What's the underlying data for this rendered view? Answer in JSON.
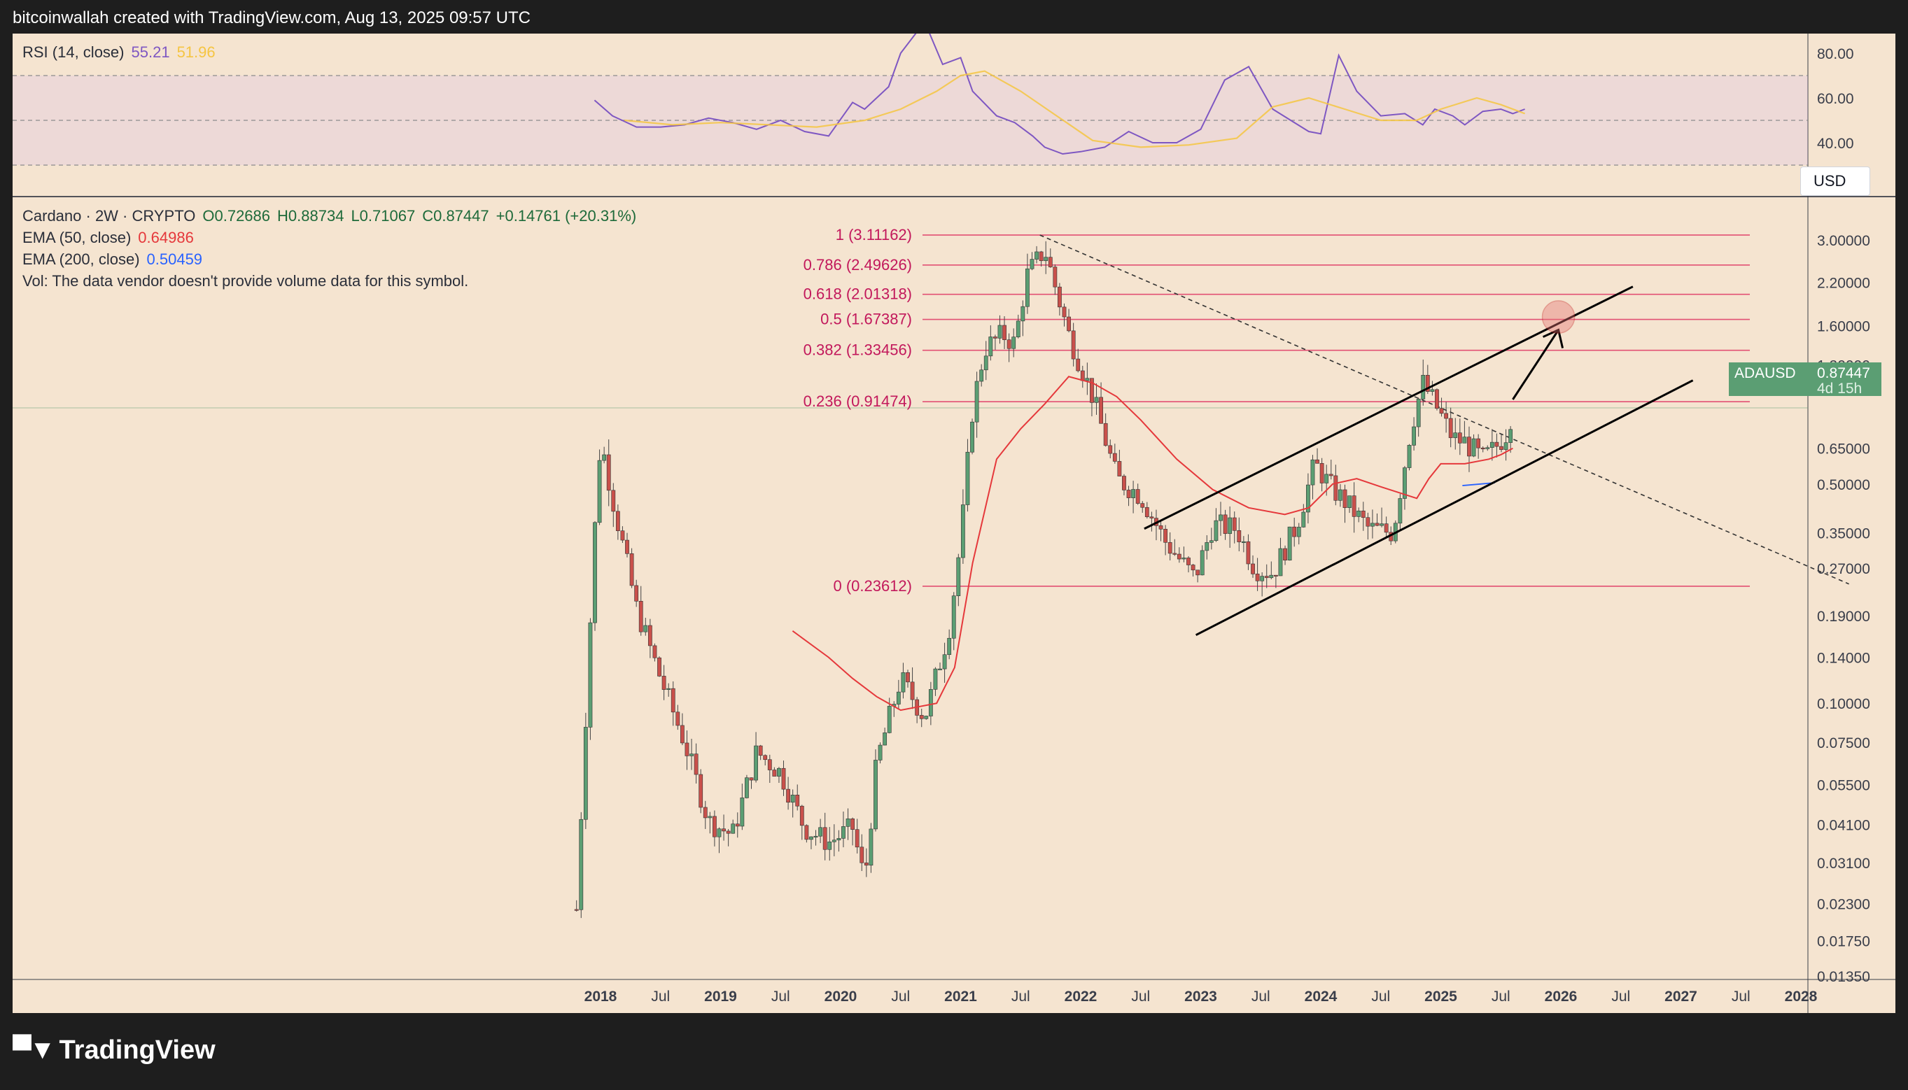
{
  "header": {
    "text": "bitcoinwallah created with TradingView.com, Aug 13, 2025 09:57 UTC"
  },
  "rsi_legend": {
    "label": "RSI (14, close)",
    "value": "55.21",
    "ma_value": "51.96"
  },
  "main_legend": {
    "symbol": "Cardano · 2W · CRYPTO",
    "open": "O0.72686",
    "high": "H0.88734",
    "low": "L0.71067",
    "close": "C0.87447",
    "change": "+0.14761 (+20.31%)",
    "ema50_label": "EMA (50, close)",
    "ema50_value": "0.64986",
    "ema200_label": "EMA (200, close)",
    "ema200_value": "0.50459",
    "vol_text": "Vol: The data vendor doesn't provide volume data for this symbol."
  },
  "currency_button": "USD",
  "price_tag": {
    "symbol": "ADAUSD",
    "price": "0.87447",
    "countdown": "4d 15h"
  },
  "logo_text": "TradingView",
  "colors": {
    "background": "#f5e4d0",
    "up": "#5b9e73",
    "down": "#c9504b",
    "ema50": "#e5383b",
    "rsi": "#7e57c2",
    "rsi_ma": "#f5c542",
    "fib": "#e0406a",
    "ema200": "#2962ff"
  },
  "chart_data": [
    {
      "type": "line",
      "title": "RSI (14, close)",
      "yticks": [
        "80.00",
        "60.00",
        "40.00"
      ],
      "ylim": [
        20,
        100
      ],
      "bands": {
        "upper": 70,
        "middle": 50,
        "lower": 30
      },
      "series": [
        {
          "name": "RSI",
          "x": [
            2017.95,
            2018.1,
            2018.3,
            2018.5,
            2018.7,
            2018.9,
            2019.1,
            2019.3,
            2019.5,
            2019.7,
            2019.9,
            2020.1,
            2020.2,
            2020.4,
            2020.5,
            2020.7,
            2020.85,
            2021.0,
            2021.1,
            2021.3,
            2021.45,
            2021.6,
            2021.7,
            2021.85,
            2022.0,
            2022.2,
            2022.4,
            2022.6,
            2022.8,
            2023.0,
            2023.2,
            2023.4,
            2023.6,
            2023.75,
            2023.9,
            2024.0,
            2024.15,
            2024.3,
            2024.5,
            2024.7,
            2024.85,
            2024.95,
            2025.1,
            2025.2,
            2025.35,
            2025.5,
            2025.6,
            2025.7
          ],
          "values": [
            59,
            52,
            47,
            47,
            48,
            51,
            49,
            46,
            50,
            45,
            43,
            58,
            55,
            65,
            80,
            94,
            75,
            78,
            63,
            52,
            49,
            43,
            38,
            35,
            36,
            38,
            45,
            40,
            40,
            46,
            68,
            74,
            55,
            50,
            45,
            44,
            79,
            63,
            52,
            53,
            48,
            55,
            52,
            48,
            54,
            55,
            53,
            55
          ]
        },
        {
          "name": "RSI MA",
          "x": [
            2018.2,
            2018.6,
            2019.0,
            2019.4,
            2019.8,
            2020.2,
            2020.5,
            2020.8,
            2021.0,
            2021.2,
            2021.5,
            2021.8,
            2022.1,
            2022.5,
            2022.9,
            2023.3,
            2023.6,
            2023.9,
            2024.2,
            2024.5,
            2024.8,
            2025.0,
            2025.3,
            2025.5,
            2025.7
          ],
          "values": [
            50,
            48,
            49,
            48,
            47,
            50,
            55,
            63,
            70,
            72,
            63,
            52,
            41,
            38,
            39,
            42,
            56,
            60,
            55,
            50,
            50,
            55,
            60,
            57,
            53
          ]
        }
      ]
    },
    {
      "type": "candlestick",
      "title": "Cardano · 2W · CRYPTO",
      "yscale": "log",
      "ylim": [
        0.0135,
        3.6
      ],
      "yticks": [
        "3.00000",
        "2.20000",
        "1.60000",
        "1.20000",
        "0.65000",
        "0.50000",
        "0.35000",
        "0.27000",
        "0.19000",
        "0.14000",
        "0.10000",
        "0.07500",
        "0.05500",
        "0.04100",
        "0.03100",
        "0.02300",
        "0.01750",
        "0.01350"
      ],
      "xticks": [
        "2018",
        "Jul",
        "2019",
        "Jul",
        "2020",
        "Jul",
        "2021",
        "Jul",
        "2022",
        "Jul",
        "2023",
        "Jul",
        "2024",
        "Jul",
        "2025",
        "Jul",
        "2026",
        "Jul",
        "2027",
        "Jul",
        "2028"
      ],
      "xlim": [
        2013.2,
        2028.0
      ],
      "key_closes": {
        "x": [
          2017.8,
          2017.95,
          2018.0,
          2018.1,
          2018.3,
          2018.5,
          2018.7,
          2018.9,
          2019.1,
          2019.3,
          2019.5,
          2019.7,
          2019.9,
          2020.1,
          2020.2,
          2020.3,
          2020.5,
          2020.7,
          2020.9,
          2021.0,
          2021.1,
          2021.2,
          2021.35,
          2021.45,
          2021.55,
          2021.7,
          2021.9,
          2022.1,
          2022.3,
          2022.5,
          2022.7,
          2022.95,
          2023.1,
          2023.3,
          2023.45,
          2023.6,
          2023.8,
          2023.95,
          2024.1,
          2024.2,
          2024.4,
          2024.6,
          2024.75,
          2024.85,
          2024.95,
          2025.1,
          2025.2,
          2025.35,
          2025.45,
          2025.55,
          2025.6
        ],
        "values": [
          0.022,
          0.35,
          0.7,
          0.45,
          0.2,
          0.12,
          0.075,
          0.042,
          0.038,
          0.07,
          0.06,
          0.04,
          0.036,
          0.04,
          0.027,
          0.065,
          0.12,
          0.09,
          0.17,
          0.33,
          0.88,
          1.35,
          1.5,
          1.4,
          2.3,
          2.8,
          1.5,
          0.95,
          0.52,
          0.46,
          0.33,
          0.25,
          0.37,
          0.36,
          0.27,
          0.26,
          0.37,
          0.58,
          0.48,
          0.44,
          0.36,
          0.35,
          0.75,
          1.05,
          0.9,
          0.7,
          0.68,
          0.6,
          0.65,
          0.73,
          0.87447
        ]
      },
      "ema50": {
        "x": [
          2019.6,
          2019.9,
          2020.1,
          2020.3,
          2020.5,
          2020.8,
          2020.95,
          2021.1,
          2021.3,
          2021.5,
          2021.7,
          2021.9,
          2022.1,
          2022.3,
          2022.5,
          2022.8,
          2023.1,
          2023.4,
          2023.7,
          2023.9,
          2024.1,
          2024.3,
          2024.5,
          2024.8,
          2024.9,
          2025.0,
          2025.2,
          2025.4,
          2025.5,
          2025.6
        ],
        "values": [
          0.17,
          0.14,
          0.12,
          0.105,
          0.095,
          0.1,
          0.13,
          0.28,
          0.6,
          0.75,
          0.9,
          1.1,
          1.05,
          0.95,
          0.8,
          0.6,
          0.48,
          0.42,
          0.4,
          0.42,
          0.5,
          0.52,
          0.49,
          0.45,
          0.52,
          0.58,
          0.58,
          0.6,
          0.62,
          0.64986
        ]
      },
      "ema200_value": 0.50459,
      "fibonacci": [
        {
          "label": "1 (3.11162)",
          "value": 3.11162
        },
        {
          "label": "0.786 (2.49626)",
          "value": 2.49626
        },
        {
          "label": "0.618 (2.01318)",
          "value": 2.01318
        },
        {
          "label": "0.5 (1.67387)",
          "value": 1.67387
        },
        {
          "label": "0.382 (1.33456)",
          "value": 1.33456
        },
        {
          "label": "0.236 (0.91474)",
          "value": 0.91474
        },
        {
          "label": "0 (0.23612)",
          "value": 0.23612
        }
      ],
      "channel": {
        "upper": {
          "x": [
            2022.53,
            2026.6
          ],
          "values": [
            0.36,
            2.13
          ]
        },
        "lower": {
          "x": [
            2022.96,
            2027.1
          ],
          "values": [
            0.165,
            1.07
          ]
        }
      },
      "downtrend": {
        "x": [
          2021.66,
          2028.4
        ],
        "values": [
          3.11,
          0.24
        ]
      },
      "projection_arrow": {
        "x": [
          2025.6,
          2025.98
        ],
        "values": [
          0.93,
          1.55
        ]
      },
      "target_circle": {
        "x": 2025.98,
        "value": 1.67
      }
    }
  ]
}
